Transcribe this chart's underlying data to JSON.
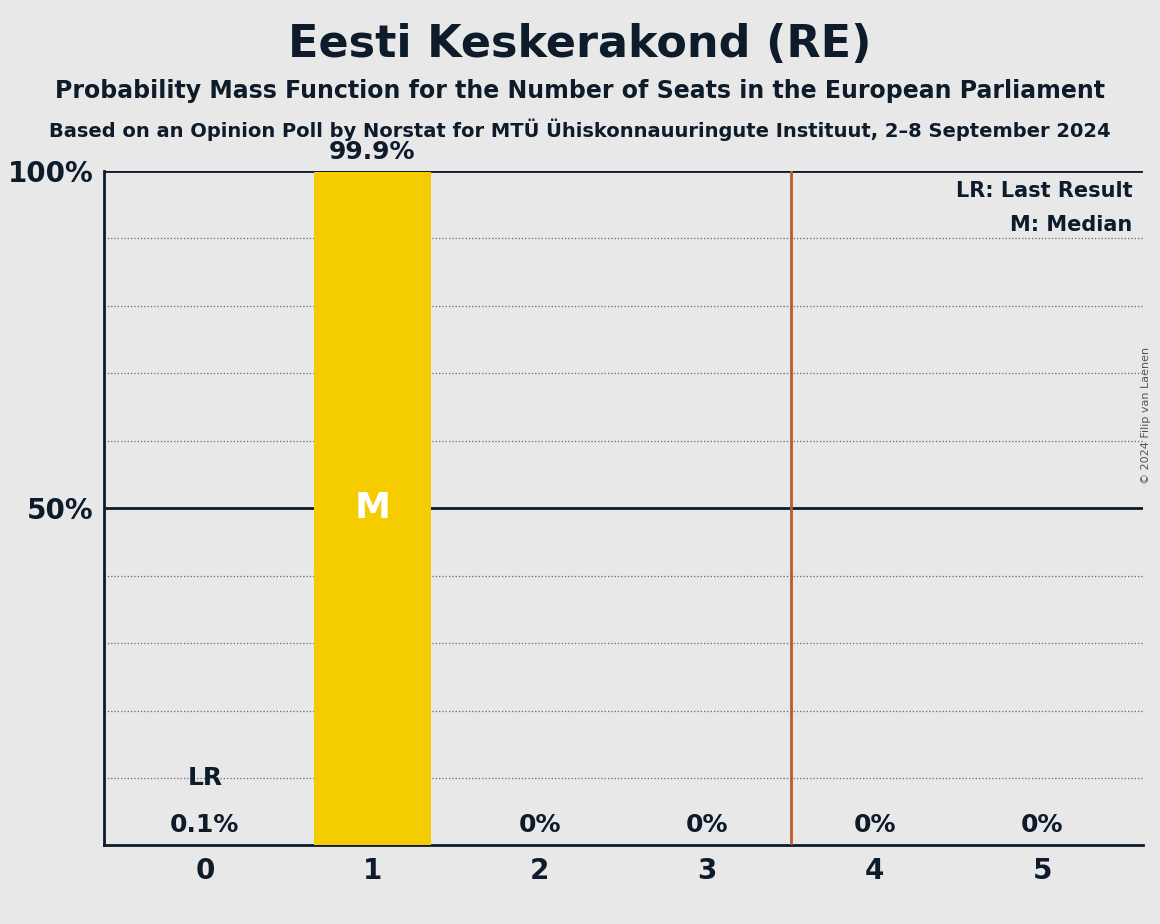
{
  "title": "Eesti Keskerakond (RE)",
  "subtitle": "Probability Mass Function for the Number of Seats in the European Parliament",
  "source_line": "Based on an Opinion Poll by Norstat for MTÜ Ühiskonnauuringute Instituut, 2–8 September 2024",
  "copyright": "© 2024 Filip van Laenen",
  "seats": [
    0,
    1,
    2,
    3,
    4,
    5
  ],
  "probabilities": [
    0.001,
    0.999,
    0.0,
    0.0,
    0.0,
    0.0
  ],
  "bar_labels": [
    "0.1%",
    "99.9%",
    "0%",
    "0%",
    "0%",
    "0%"
  ],
  "bar_color": "#F5CC00",
  "median": 1,
  "last_result": 3.5,
  "lr_seat": 0,
  "ylim": [
    0,
    1.0
  ],
  "yticks": [
    0.0,
    0.1,
    0.2,
    0.3,
    0.4,
    0.5,
    0.6,
    0.7,
    0.8,
    0.9,
    1.0
  ],
  "legend_lr": "LR: Last Result",
  "legend_m": "M: Median",
  "background_color": "#e8e8e8",
  "text_color": "#0d1b2a",
  "bar_width": 0.7,
  "title_fontsize": 32,
  "subtitle_fontsize": 17,
  "source_fontsize": 14,
  "xtick_fontsize": 20,
  "ytick_fontsize": 20,
  "bar_label_fontsize": 18,
  "M_fontsize": 26,
  "lr_fontsize": 18,
  "legend_fontsize": 15,
  "copyright_fontsize": 8
}
